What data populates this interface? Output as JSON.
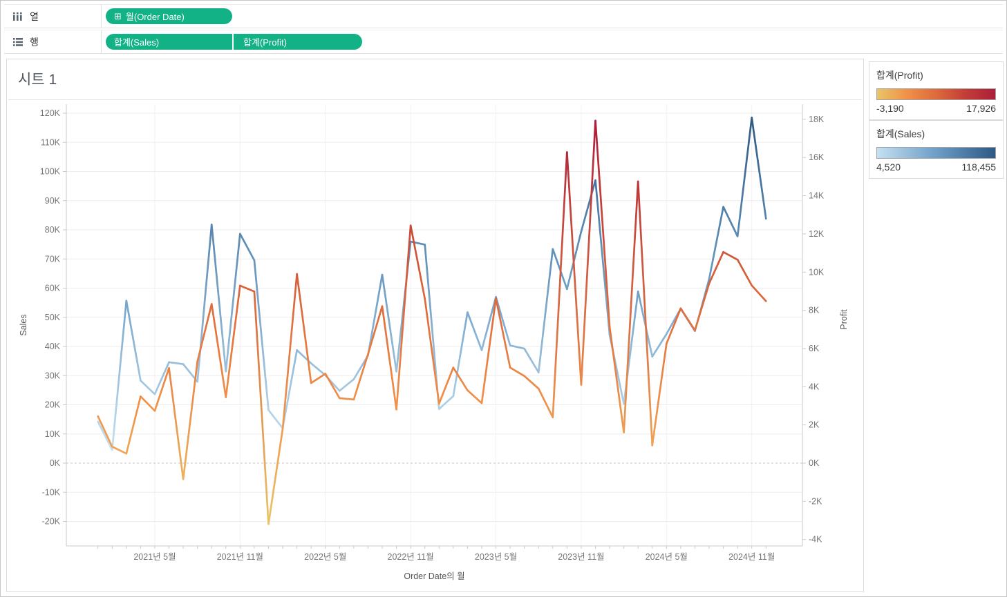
{
  "shelves": {
    "columns": {
      "label": "열",
      "pills": [
        {
          "label": "월(Order Date)",
          "expand_icon": "⊞"
        }
      ]
    },
    "rows": {
      "label": "행",
      "pills": [
        {
          "label": "합계(Sales)"
        },
        {
          "label": "합계(Profit)"
        }
      ]
    },
    "pill_color": "#12b286"
  },
  "sheet": {
    "title": "시트 1"
  },
  "legends": [
    {
      "title": "합계(Profit)",
      "min_label": "-3,190",
      "max_label": "17,926",
      "ramp_stops": [
        "#e9c568",
        "#f0914a",
        "#dd6a3c",
        "#c23d37",
        "#ad1e3a"
      ]
    },
    {
      "title": "합계(Sales)",
      "min_label": "4,520",
      "max_label": "118,455",
      "ramp_stops": [
        "#c5e0f2",
        "#6d9ec6",
        "#2d5984"
      ]
    }
  ],
  "chart_data": {
    "type": "line",
    "title": "시트 1",
    "x_axis": {
      "title": "Order Date의 월",
      "months_total": 48,
      "start": "2021년 1월",
      "end": "2024년 12월",
      "tick_labels": [
        {
          "month_index": 4,
          "label": "2021년 5월"
        },
        {
          "month_index": 10,
          "label": "2021년 11월"
        },
        {
          "month_index": 16,
          "label": "2022년 5월"
        },
        {
          "month_index": 22,
          "label": "2022년 11월"
        },
        {
          "month_index": 28,
          "label": "2023년 5월"
        },
        {
          "month_index": 34,
          "label": "2023년 11월"
        },
        {
          "month_index": 40,
          "label": "2024년 5월"
        },
        {
          "month_index": 46,
          "label": "2024년 11월"
        }
      ]
    },
    "y_left": {
      "title": "Sales",
      "min": -20000,
      "max": 120000,
      "tick_step": 10000
    },
    "y_right": {
      "title": "Profit",
      "min": -4000,
      "max": 18000,
      "tick_step": 2000
    },
    "zero_line": "dashed",
    "grid": true,
    "series": [
      {
        "name": "합계(Sales)",
        "axis": "left",
        "color_scale": {
          "domain": [
            4520,
            118455
          ],
          "stops": [
            [
              0,
              "#c5e0f2"
            ],
            [
              0.5,
              "#6d9ec6"
            ],
            [
              1,
              "#2d5984"
            ]
          ]
        },
        "values": [
          14237,
          4520,
          55691,
          28295,
          23648,
          34595,
          33946,
          27909,
          81777,
          31453,
          78629,
          69545,
          18174,
          11951,
          38726,
          34195,
          30131,
          24797,
          28765,
          36898,
          64595,
          31404,
          75973,
          74920,
          18542,
          22978,
          51716,
          38750,
          56988,
          40344,
          39262,
          31115,
          73410,
          59687,
          79412,
          96999,
          43971,
          20301,
          58872,
          36522,
          44261,
          52982,
          45264,
          63121,
          87867,
          77777,
          118455,
          83829
        ]
      },
      {
        "name": "합계(Profit)",
        "axis": "right",
        "color_scale": {
          "domain": [
            -3190,
            17926
          ],
          "stops": [
            [
              0,
              "#e9c568"
            ],
            [
              0.3,
              "#f0914a"
            ],
            [
              0.55,
              "#dd6a3c"
            ],
            [
              0.8,
              "#c23d37"
            ],
            [
              1,
              "#ad1e3a"
            ]
          ]
        },
        "values": [
          2450,
          862,
          499,
          3489,
          2739,
          4977,
          -841,
          5318,
          8328,
          3448,
          9292,
          8984,
          -3190,
          1800,
          9900,
          4190,
          4680,
          3400,
          3330,
          5700,
          8210,
          2810,
          12440,
          8600,
          3110,
          5000,
          3810,
          3140,
          8620,
          5000,
          4560,
          3900,
          2400,
          16280,
          4100,
          17926,
          7140,
          1610,
          14750,
          930,
          6250,
          8100,
          6950,
          9400,
          11050,
          10650,
          9300,
          8480
        ]
      }
    ]
  }
}
